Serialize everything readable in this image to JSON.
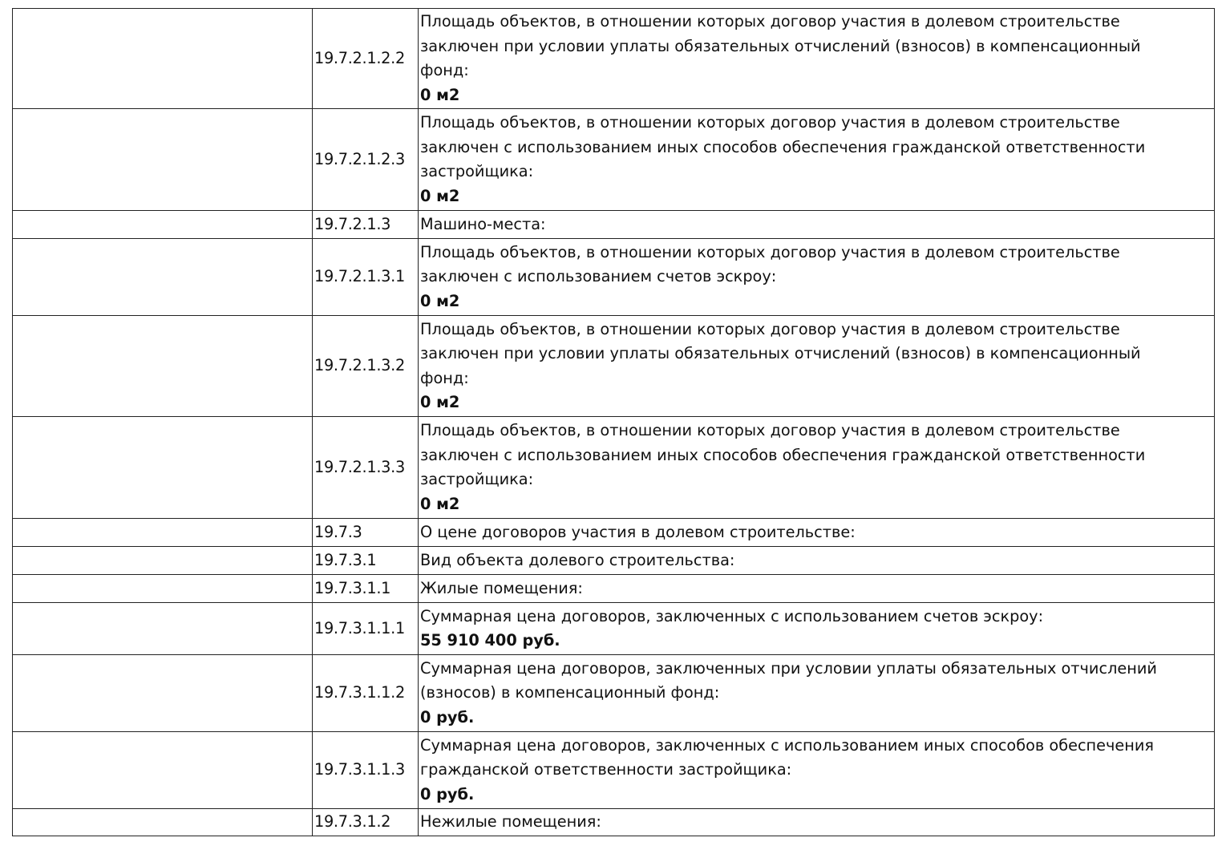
{
  "rows": [
    {
      "num": "19.7.2.1.2.2",
      "text": "Площадь объектов, в отношении которых договор участия в долевом строительстве\nзаключен при условии уплаты обязательных отчислений (взносов) в компенсационный\nфонд:",
      "value": "0 м2"
    },
    {
      "num": "19.7.2.1.2.3",
      "text": "Площадь объектов, в отношении которых договор участия в долевом строительстве\nзаключен с использованием иных способов обеспечения гражданской ответственности\nзастройщика:",
      "value": "0 м2"
    },
    {
      "num": "19.7.2.1.3",
      "text": "Машино-места:",
      "value": null
    },
    {
      "num": "19.7.2.1.3.1",
      "text": "Площадь объектов, в отношении которых договор участия в долевом строительстве\nзаключен с использованием счетов эскроу:",
      "value": "0 м2"
    },
    {
      "num": "19.7.2.1.3.2",
      "text": "Площадь объектов, в отношении которых договор участия в долевом строительстве\nзаключен при условии уплаты обязательных отчислений (взносов) в компенсационный\nфонд:",
      "value": "0 м2"
    },
    {
      "num": "19.7.2.1.3.3",
      "text": "Площадь объектов, в отношении которых договор участия в долевом строительстве\nзаключен с использованием иных способов обеспечения гражданской ответственности\nзастройщика:",
      "value": "0 м2"
    },
    {
      "num": "19.7.3",
      "text": "О цене договоров участия в долевом строительстве:",
      "value": null
    },
    {
      "num": "19.7.3.1",
      "text": "Вид объекта долевого строительства:",
      "value": null
    },
    {
      "num": "19.7.3.1.1",
      "text": "Жилые помещения:",
      "value": null
    },
    {
      "num": "19.7.3.1.1.1",
      "text": "Суммарная цена договоров, заключенных с использованием счетов эскроу:",
      "value": "55 910 400 руб."
    },
    {
      "num": "19.7.3.1.1.2",
      "text": "Суммарная цена договоров, заключенных при условии уплаты обязательных отчислений\n(взносов) в компенсационный фонд:",
      "value": "0 руб."
    },
    {
      "num": "19.7.3.1.1.3",
      "text": "Суммарная цена договоров, заключенных с использованием иных способов обеспечения\nгражданской ответственности застройщика:",
      "value": "0 руб."
    },
    {
      "num": "19.7.3.1.2",
      "text": "Нежилые помещения:",
      "value": null
    }
  ]
}
